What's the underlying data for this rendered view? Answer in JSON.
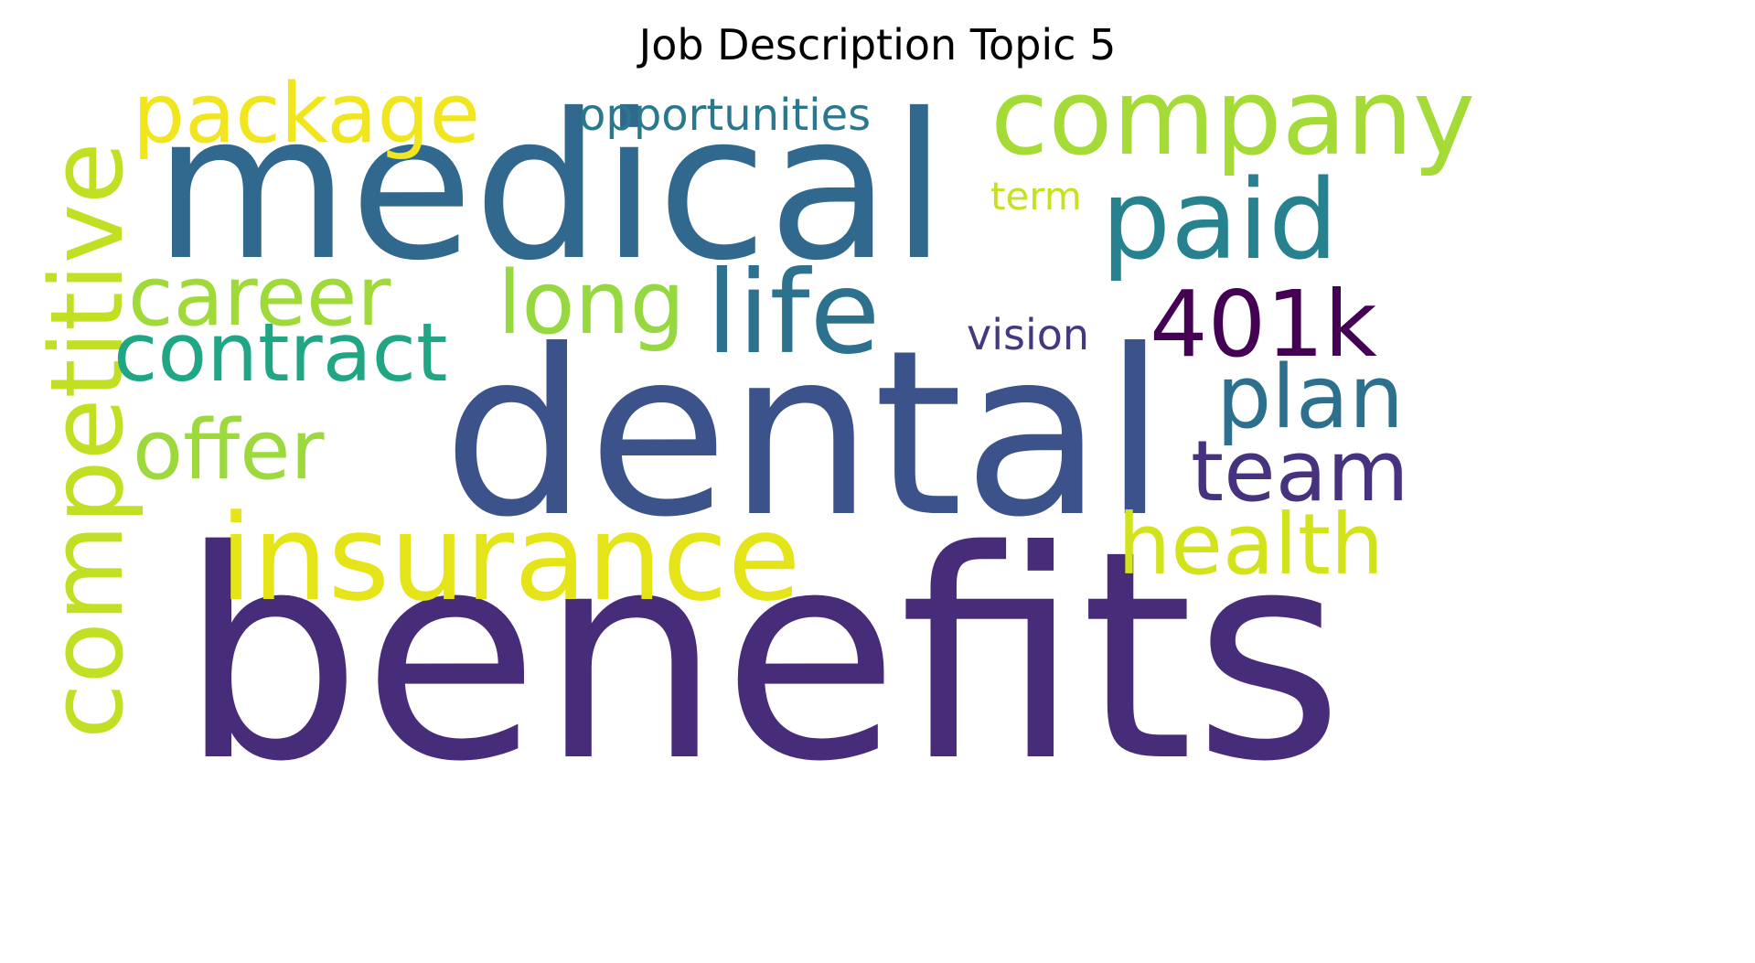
{
  "title": "Job Description Topic 5",
  "words": [
    {
      "id": "benefits",
      "text": "benefits",
      "color": "#472c7a"
    },
    {
      "id": "dental",
      "text": "dental",
      "color": "#3b528b"
    },
    {
      "id": "medical",
      "text": "medical",
      "color": "#31688e"
    },
    {
      "id": "insurance",
      "text": "insurance",
      "color": "#e5e419"
    },
    {
      "id": "competitive",
      "text": "competitive",
      "color": "#c2df23"
    },
    {
      "id": "company",
      "text": "company",
      "color": "#a5db36"
    },
    {
      "id": "life",
      "text": "life",
      "color": "#2c728e"
    },
    {
      "id": "package",
      "text": "package",
      "color": "#f1e51d"
    },
    {
      "id": "paid",
      "text": "paid",
      "color": "#26828e"
    },
    {
      "id": "career",
      "text": "career",
      "color": "#a0da39"
    },
    {
      "id": "contract",
      "text": "contract",
      "color": "#21a685"
    },
    {
      "id": "offer",
      "text": "offer",
      "color": "#9bd93c"
    },
    {
      "id": "long",
      "text": "long",
      "color": "#95d840"
    },
    {
      "id": "401k",
      "text": "401k",
      "color": "#440154"
    },
    {
      "id": "plan",
      "text": "plan",
      "color": "#2d708e"
    },
    {
      "id": "team",
      "text": "team",
      "color": "#46327e"
    },
    {
      "id": "health",
      "text": "health",
      "color": "#d2e21b"
    },
    {
      "id": "vision",
      "text": "vision",
      "color": "#453781"
    },
    {
      "id": "opportunities",
      "text": "opportunities",
      "color": "#2a788e"
    },
    {
      "id": "term",
      "text": "term",
      "color": "#c8e020"
    }
  ]
}
